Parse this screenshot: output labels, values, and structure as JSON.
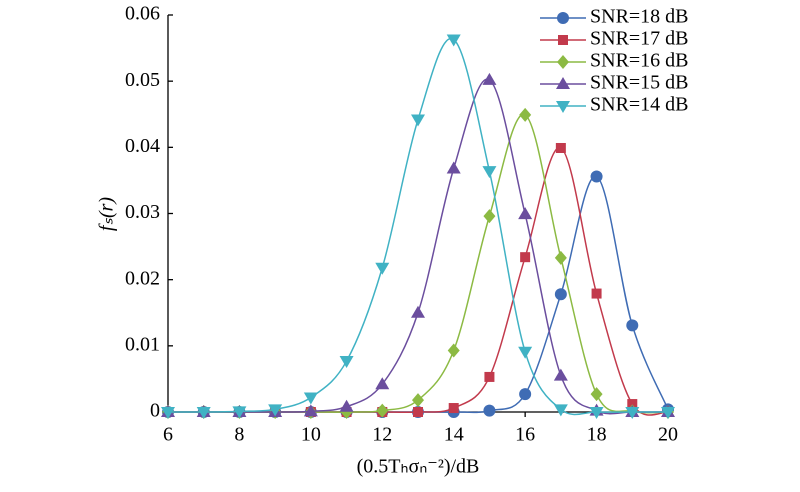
{
  "chart_data": {
    "type": "line",
    "x_label": "(0.5Tₕσₙ⁻²)/dB",
    "y_label": "fₛ(r)",
    "x": [
      6,
      7,
      8,
      9,
      10,
      11,
      12,
      13,
      14,
      15,
      16,
      17,
      18,
      19,
      20
    ],
    "xlim": [
      6,
      20
    ],
    "xticks": [
      6,
      8,
      10,
      12,
      14,
      16,
      18,
      20
    ],
    "ylim": [
      0,
      0.06
    ],
    "yticks": [
      0,
      0.01,
      0.02,
      0.03,
      0.04,
      0.05,
      0.06
    ],
    "grid": false,
    "legend": "upper right",
    "series": [
      {
        "name": "SNR=18 dB",
        "color": "#3f6cb4",
        "marker": "circle",
        "values": [
          0,
          0,
          0,
          0,
          0,
          0,
          0,
          0,
          0,
          0.0002,
          0.0027,
          0.0178,
          0.0356,
          0.0131,
          0.0004
        ]
      },
      {
        "name": "SNR=17 dB",
        "color": "#c23a4c",
        "marker": "square",
        "values": [
          0,
          0,
          0,
          0,
          0,
          0,
          0,
          0,
          0.0006,
          0.0053,
          0.0234,
          0.0399,
          0.0179,
          0.0012,
          0
        ]
      },
      {
        "name": "SNR=16 dB",
        "color": "#8cba43",
        "marker": "diamond",
        "values": [
          0,
          0,
          0,
          0,
          0,
          0,
          0.0002,
          0.0018,
          0.0093,
          0.0296,
          0.0449,
          0.0233,
          0.0027,
          0.0001,
          0
        ]
      },
      {
        "name": "SNR=15 dB",
        "color": "#6b4e9e",
        "marker": "triangle",
        "values": [
          0,
          0,
          0,
          0,
          0.0001,
          0.0008,
          0.0042,
          0.015,
          0.0368,
          0.0502,
          0.0299,
          0.0055,
          0.0002,
          0,
          0
        ]
      },
      {
        "name": "SNR=14 dB",
        "color": "#40b2c4",
        "marker": "triangle-down",
        "values": [
          0,
          0,
          0.0001,
          0.0004,
          0.0022,
          0.0077,
          0.0218,
          0.0442,
          0.0563,
          0.0364,
          0.0091,
          0.0004,
          0,
          0,
          0
        ]
      }
    ]
  }
}
